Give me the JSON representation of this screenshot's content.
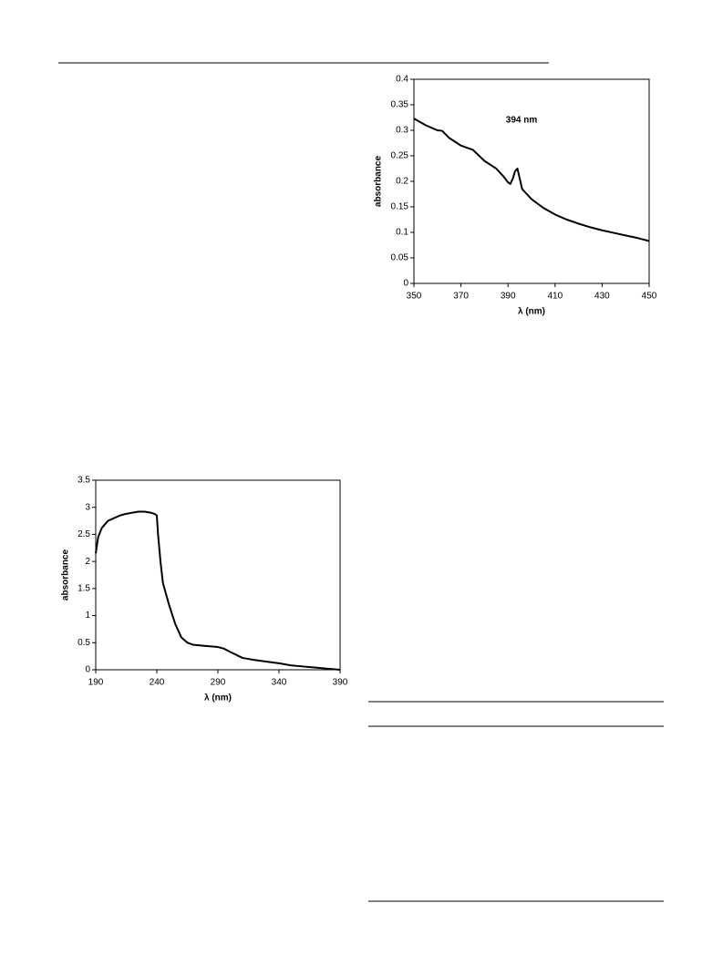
{
  "chart_data": [
    {
      "type": "line",
      "xlabel": "λ (nm)",
      "ylabel": "absorbance",
      "annotation": "394 nm",
      "color": "#000000",
      "x": [
        350,
        355,
        360,
        362,
        365,
        370,
        375,
        380,
        385,
        388,
        390,
        391,
        392,
        393,
        394,
        395,
        396,
        398,
        400,
        405,
        410,
        415,
        420,
        425,
        430,
        435,
        440,
        445,
        450
      ],
      "values": [
        0.323,
        0.31,
        0.3,
        0.299,
        0.285,
        0.27,
        0.262,
        0.24,
        0.225,
        0.21,
        0.198,
        0.195,
        0.205,
        0.22,
        0.225,
        0.205,
        0.185,
        0.175,
        0.165,
        0.148,
        0.135,
        0.125,
        0.117,
        0.11,
        0.104,
        0.099,
        0.094,
        0.089,
        0.083
      ],
      "xlim": [
        350,
        450
      ],
      "xticks": [
        350,
        370,
        390,
        410,
        430,
        450
      ],
      "ylim": [
        0,
        0.4
      ],
      "yticks": [
        0,
        0.05,
        0.1,
        0.15,
        0.2,
        0.25,
        0.3,
        0.35,
        0.4
      ]
    },
    {
      "type": "line",
      "xlabel": "λ (nm)",
      "ylabel": "absorbance",
      "color": "#000000",
      "x": [
        190,
        192,
        195,
        200,
        205,
        210,
        215,
        220,
        225,
        230,
        235,
        238,
        240,
        241,
        243,
        245,
        250,
        255,
        260,
        265,
        270,
        280,
        290,
        295,
        300,
        310,
        320,
        330,
        340,
        350,
        360,
        370,
        380,
        390
      ],
      "values": [
        2.15,
        2.45,
        2.62,
        2.75,
        2.8,
        2.85,
        2.88,
        2.9,
        2.92,
        2.92,
        2.9,
        2.88,
        2.85,
        2.5,
        2.0,
        1.6,
        1.2,
        0.85,
        0.6,
        0.5,
        0.46,
        0.44,
        0.42,
        0.39,
        0.33,
        0.22,
        0.18,
        0.15,
        0.12,
        0.08,
        0.06,
        0.04,
        0.02,
        0
      ],
      "xlim": [
        190,
        390
      ],
      "xticks": [
        190,
        240,
        290,
        340,
        390
      ],
      "ylim": [
        0,
        3.5
      ],
      "yticks": [
        0,
        0.5,
        1,
        1.5,
        2,
        2.5,
        3,
        3.5
      ]
    }
  ]
}
